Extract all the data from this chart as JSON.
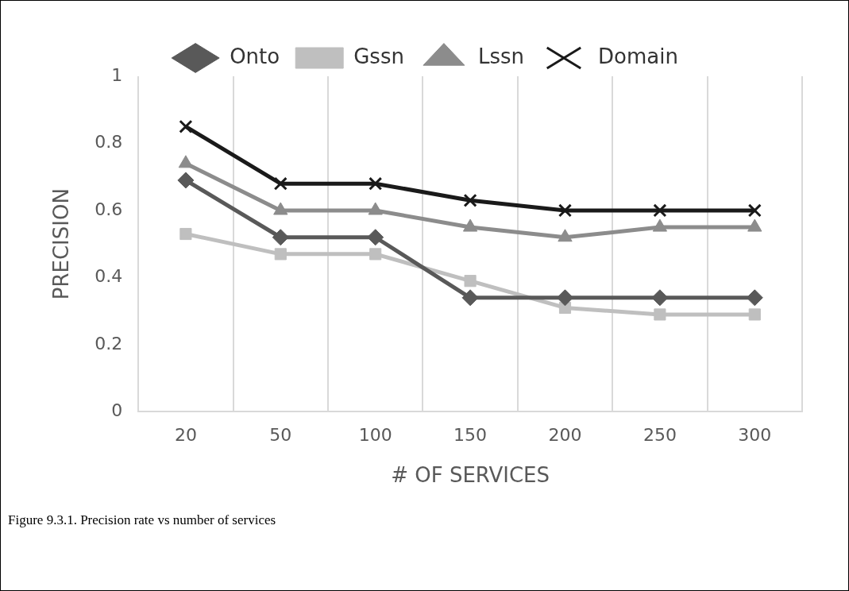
{
  "chart_data": {
    "type": "line",
    "xlabel": "# OF SERVICES",
    "ylabel": "PRECISION",
    "categories": [
      "20",
      "50",
      "100",
      "150",
      "200",
      "250",
      "300"
    ],
    "series": [
      {
        "name": "Onto",
        "color": "#595959",
        "marker": "diamond",
        "values": [
          0.69,
          0.52,
          0.52,
          0.34,
          0.34,
          0.34,
          0.34
        ]
      },
      {
        "name": "Gssn",
        "color": "#bfbfbf",
        "marker": "square",
        "values": [
          0.53,
          0.47,
          0.47,
          0.39,
          0.31,
          0.29,
          0.29
        ]
      },
      {
        "name": "Lssn",
        "color": "#8c8c8c",
        "marker": "triangle",
        "values": [
          0.74,
          0.6,
          0.6,
          0.55,
          0.52,
          0.55,
          0.55
        ]
      },
      {
        "name": "Domain",
        "color": "#1a1a1a",
        "marker": "cross",
        "values": [
          0.85,
          0.68,
          0.68,
          0.63,
          0.6,
          0.6,
          0.6
        ]
      }
    ],
    "ylim": [
      0,
      1
    ],
    "yticks": [
      0,
      0.2,
      0.4,
      0.6,
      0.8,
      1
    ],
    "grid": "x",
    "legend": "top",
    "annotations": [
      "Figure 9.3.1. Precision rate vs number of services"
    ]
  }
}
